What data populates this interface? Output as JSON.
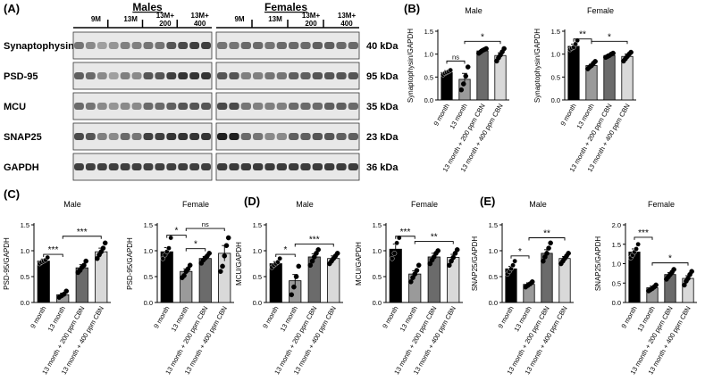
{
  "panel_letters": {
    "a": "(A)",
    "b": "(B)",
    "c": "(C)",
    "d": "(D)",
    "e": "(E)"
  },
  "western_blot": {
    "group_headers": {
      "males": "Males",
      "females": "Females"
    },
    "lane_labels": [
      "9M",
      "13M",
      "13M+\n200",
      "13M+\n400"
    ],
    "bands": [
      {
        "protein": "Synaptophysin",
        "mw": "40 kDa"
      },
      {
        "protein": "PSD-95",
        "mw": "95 kDa"
      },
      {
        "protein": "MCU",
        "mw": "35 kDa"
      },
      {
        "protein": "SNAP25",
        "mw": "23 kDa"
      },
      {
        "protein": "GAPDH",
        "mw": "36 kDa"
      }
    ]
  },
  "chart_data": [
    {
      "id": "b-male",
      "panel": "B",
      "type": "bar",
      "title": "Male",
      "ylabel": "Synaptophysin/GAPDH",
      "ylim": [
        0,
        1.5
      ],
      "yticks": [
        "0.0",
        "0.5",
        "1.0",
        "1.5"
      ],
      "categories": [
        "9 month",
        "13 month",
        "13 month + 200 ppm CBN",
        "13 month + 400 ppm CBN"
      ],
      "values": [
        0.6,
        0.45,
        1.07,
        0.97
      ],
      "errors": [
        0.04,
        0.13,
        0.03,
        0.06
      ],
      "points": [
        [
          0.55,
          0.58,
          0.6,
          0.62,
          0.65
        ],
        [
          0.22,
          0.35,
          0.52,
          0.72
        ],
        [
          1.02,
          1.05,
          1.08,
          1.1,
          1.12
        ],
        [
          0.85,
          0.92,
          0.98,
          1.05,
          1.12
        ]
      ],
      "annotations": [
        {
          "text": "ns",
          "from": 0,
          "to": 1,
          "y": 0.85
        },
        {
          "text": "*",
          "from": 1,
          "to": 3,
          "y": 1.28
        }
      ]
    },
    {
      "id": "b-female",
      "panel": "B",
      "type": "bar",
      "title": "Female",
      "ylabel": "Synaptophysin/GAPDH",
      "ylim": [
        0,
        1.5
      ],
      "yticks": [
        "0.0",
        "0.5",
        "1.0",
        "1.5"
      ],
      "categories": [
        "9 month",
        "13 month",
        "13 month + 200 ppm CBN",
        "13 month + 400 ppm CBN"
      ],
      "values": [
        1.17,
        0.75,
        0.97,
        0.95
      ],
      "errors": [
        0.05,
        0.03,
        0.03,
        0.05
      ],
      "points": [
        [
          1.1,
          1.13,
          1.15,
          1.22,
          1.3
        ],
        [
          0.68,
          0.72,
          0.75,
          0.8,
          0.84
        ],
        [
          0.93,
          0.95,
          0.97,
          1.0,
          1.02
        ],
        [
          0.85,
          0.9,
          0.95,
          1.0,
          1.04
        ]
      ],
      "annotations": [
        {
          "text": "**",
          "from": 0,
          "to": 1,
          "y": 1.33
        },
        {
          "text": "*",
          "from": 1,
          "to": 3,
          "y": 1.28
        }
      ]
    },
    {
      "id": "c-male",
      "panel": "C",
      "type": "bar",
      "title": "Male",
      "ylabel": "PSD-95/GAPDH",
      "ylim": [
        0,
        1.5
      ],
      "yticks": [
        "0.0",
        "0.5",
        "1.0",
        "1.5"
      ],
      "categories": [
        "9 month",
        "13 month",
        "13 month + 200 ppm CBN",
        "13 month + 400 ppm CBN"
      ],
      "values": [
        0.8,
        0.15,
        0.67,
        0.98
      ],
      "errors": [
        0.04,
        0.03,
        0.06,
        0.07
      ],
      "points": [
        [
          0.75,
          0.78,
          0.8,
          0.82,
          0.87
        ],
        [
          0.1,
          0.13,
          0.16,
          0.22
        ],
        [
          0.58,
          0.62,
          0.68,
          0.72,
          0.8
        ],
        [
          0.85,
          0.92,
          0.98,
          1.05,
          1.15
        ]
      ],
      "annotations": [
        {
          "text": "***",
          "from": 0,
          "to": 1,
          "y": 0.93
        },
        {
          "text": "***",
          "from": 1,
          "to": 3,
          "y": 1.28
        }
      ]
    },
    {
      "id": "c-female",
      "panel": "C",
      "type": "bar",
      "title": "Female",
      "ylabel": "PSD-95/GAPDH",
      "ylim": [
        0,
        1.5
      ],
      "yticks": [
        "0.0",
        "0.5",
        "1.0",
        "1.5"
      ],
      "categories": [
        "9 month",
        "13 month",
        "13 month + 200 ppm CBN",
        "13 month + 400 ppm CBN"
      ],
      "values": [
        0.98,
        0.6,
        0.85,
        0.95
      ],
      "errors": [
        0.08,
        0.05,
        0.04,
        0.15
      ],
      "points": [
        [
          0.85,
          0.92,
          0.98,
          1.05,
          1.25
        ],
        [
          0.48,
          0.52,
          0.6,
          0.65,
          0.72
        ],
        [
          0.76,
          0.82,
          0.86,
          0.9,
          0.95
        ],
        [
          0.6,
          0.7,
          0.9,
          1.1,
          1.25
        ]
      ],
      "annotations": [
        {
          "text": "*",
          "from": 0,
          "to": 1,
          "y": 1.3
        },
        {
          "text": "ns",
          "from": 1,
          "to": 3,
          "y": 1.43
        },
        {
          "text": "*",
          "from": 1,
          "to": 2,
          "y": 1.04
        }
      ]
    },
    {
      "id": "d-male",
      "panel": "D",
      "type": "bar",
      "title": "Male",
      "ylabel": "MCU/GAPDH",
      "ylim": [
        0,
        1.5
      ],
      "yticks": [
        "0.0",
        "0.5",
        "1.0",
        "1.5"
      ],
      "categories": [
        "9 month",
        "13 month",
        "13 month + 200 ppm CBN",
        "13 month + 400 ppm CBN"
      ],
      "values": [
        0.75,
        0.42,
        0.88,
        0.85
      ],
      "errors": [
        0.04,
        0.12,
        0.06,
        0.05
      ],
      "points": [
        [
          0.68,
          0.72,
          0.75,
          0.78,
          0.85
        ],
        [
          0.15,
          0.3,
          0.5,
          0.7
        ],
        [
          0.72,
          0.8,
          0.88,
          0.95,
          1.02
        ],
        [
          0.75,
          0.8,
          0.85,
          0.9,
          0.95
        ]
      ],
      "annotations": [
        {
          "text": "*",
          "from": 0,
          "to": 1,
          "y": 0.93
        },
        {
          "text": "***",
          "from": 1,
          "to": 3,
          "y": 1.13
        }
      ]
    },
    {
      "id": "d-female",
      "panel": "D",
      "type": "bar",
      "title": "Female",
      "ylabel": "MCU/GAPDH",
      "ylim": [
        0,
        1.5
      ],
      "yticks": [
        "0.0",
        "0.5",
        "1.0",
        "1.5"
      ],
      "categories": [
        "9 month",
        "13 month",
        "13 month + 200 ppm CBN",
        "13 month + 400 ppm CBN"
      ],
      "values": [
        1.03,
        0.55,
        0.88,
        0.87
      ],
      "errors": [
        0.1,
        0.06,
        0.07,
        0.06
      ],
      "points": [
        [
          0.85,
          0.95,
          1.15,
          1.25
        ],
        [
          0.4,
          0.48,
          0.55,
          0.62,
          0.72
        ],
        [
          0.75,
          0.82,
          0.88,
          0.95,
          1.0
        ],
        [
          0.72,
          0.8,
          0.87,
          0.95,
          1.02
        ]
      ],
      "annotations": [
        {
          "text": "***",
          "from": 0,
          "to": 1,
          "y": 1.28
        },
        {
          "text": "**",
          "from": 1,
          "to": 3,
          "y": 1.18
        }
      ]
    },
    {
      "id": "e-male",
      "panel": "E",
      "type": "bar",
      "title": "Male",
      "ylabel": "SNAP25/GAPDH",
      "ylim": [
        0,
        1.5
      ],
      "yticks": [
        "0.0",
        "0.5",
        "1.0",
        "1.5"
      ],
      "categories": [
        "9 month",
        "13 month",
        "13 month + 200 ppm CBN",
        "13 month + 400 ppm CBN"
      ],
      "values": [
        0.65,
        0.35,
        0.95,
        0.85
      ],
      "errors": [
        0.05,
        0.03,
        0.07,
        0.04
      ],
      "points": [
        [
          0.55,
          0.6,
          0.65,
          0.72,
          0.8
        ],
        [
          0.3,
          0.33,
          0.36,
          0.4
        ],
        [
          0.8,
          0.88,
          0.95,
          1.05,
          1.15
        ],
        [
          0.75,
          0.8,
          0.85,
          0.9,
          0.95
        ]
      ],
      "annotations": [
        {
          "text": "*",
          "from": 0,
          "to": 1,
          "y": 0.9
        },
        {
          "text": "**",
          "from": 1,
          "to": 3,
          "y": 1.25
        }
      ]
    },
    {
      "id": "e-female",
      "panel": "E",
      "type": "bar",
      "title": "Female",
      "ylabel": "SNAP25/GAPDH",
      "ylim": [
        0,
        2.0
      ],
      "yticks": [
        "0.0",
        "0.5",
        "1.0",
        "1.5",
        "2.0"
      ],
      "categories": [
        "9 month",
        "13 month",
        "13 month + 200 ppm CBN",
        "13 month + 400 ppm CBN"
      ],
      "values": [
        1.3,
        0.38,
        0.72,
        0.62
      ],
      "errors": [
        0.08,
        0.04,
        0.05,
        0.07
      ],
      "points": [
        [
          1.15,
          1.22,
          1.3,
          1.38,
          1.5
        ],
        [
          0.3,
          0.33,
          0.36,
          0.4,
          0.45
        ],
        [
          0.6,
          0.66,
          0.72,
          0.78,
          0.85
        ],
        [
          0.45,
          0.55,
          0.62,
          0.72,
          0.8
        ]
      ],
      "annotations": [
        {
          "text": "***",
          "from": 0,
          "to": 1,
          "y": 1.68
        },
        {
          "text": "*",
          "from": 1,
          "to": 3,
          "y": 1.02
        }
      ]
    }
  ]
}
